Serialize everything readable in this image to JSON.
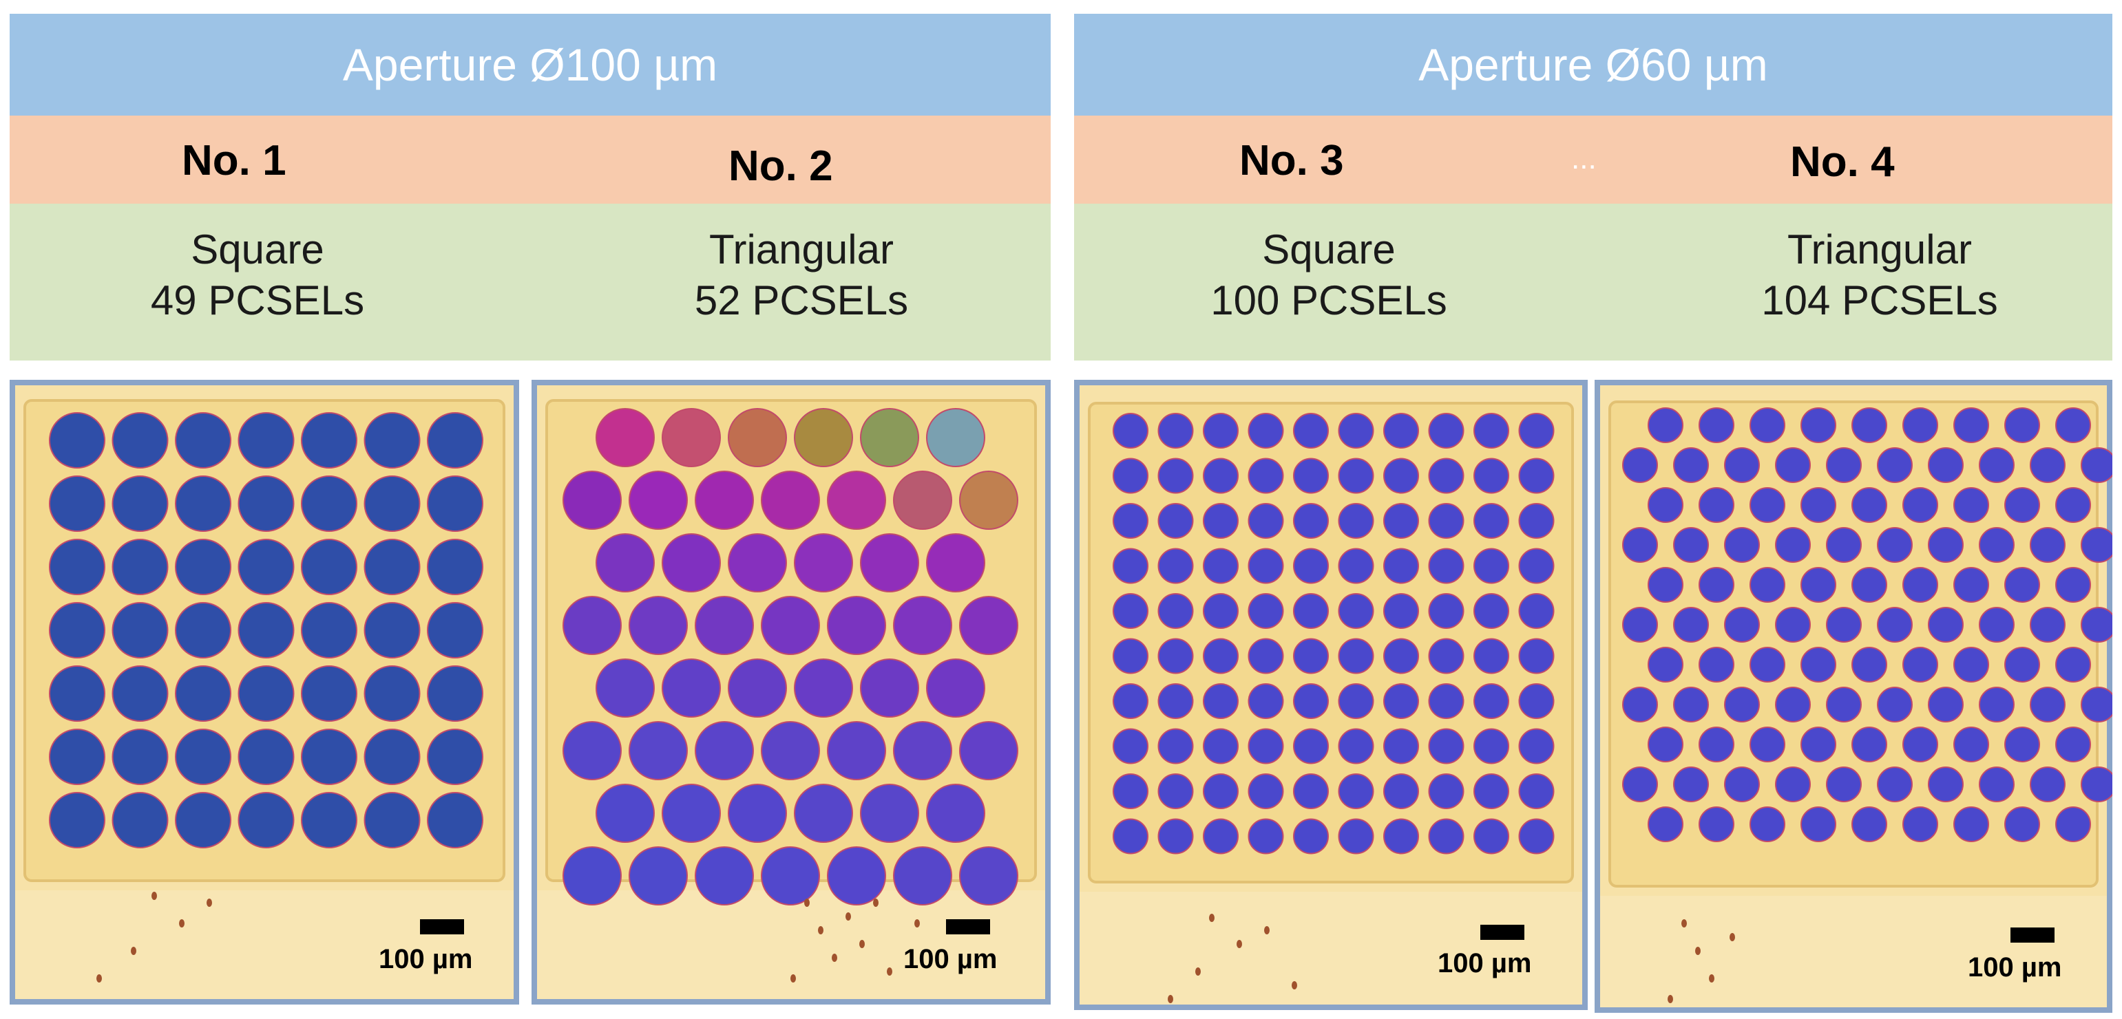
{
  "groups": [
    {
      "aperture_label": "Aperture Ø100 µm",
      "samples": [
        {
          "number": "No. 1",
          "lattice": "Square",
          "count": "49 PCSELs",
          "scale": "100 µm"
        },
        {
          "number": "No. 2",
          "lattice": "Triangular",
          "count": "52 PCSELs",
          "scale": "100 µm"
        }
      ]
    },
    {
      "aperture_label": "Aperture Ø60 µm",
      "ellipsis": "...",
      "samples": [
        {
          "number": "No. 3",
          "lattice": "Square",
          "count": "100 PCSELs",
          "scale": "100 µm"
        },
        {
          "number": "No. 4",
          "lattice": "Triangular",
          "count": "104 PCSELs",
          "scale": "100 µm"
        }
      ]
    }
  ],
  "colors": {
    "aperture_bar": "#9dc3e6",
    "number_bar": "#f8cbad",
    "pattern_bar": "#d8e6c3",
    "chip_background": "#f4dc97",
    "emitter_dark_blue": "#2f4ea8",
    "emitter_violet": "#5b45c8"
  }
}
